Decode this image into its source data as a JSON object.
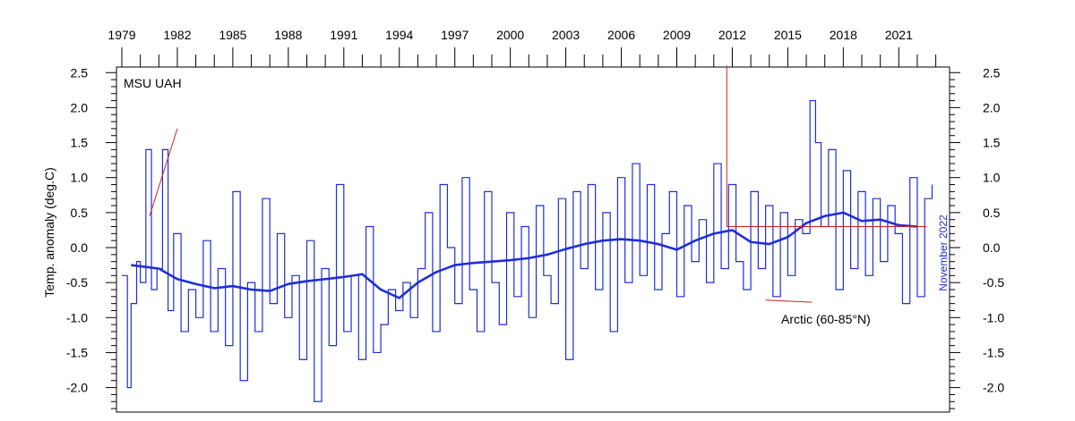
{
  "chart_data": {
    "type": "line",
    "title": "",
    "panel_label": "MSU UAH",
    "ylabel": "Temp. anomaly (deg.C)",
    "date_stamp": "November 2022",
    "annotation": "Arctic (60-85°N)",
    "x_ticks": [
      "1979",
      "1982",
      "1985",
      "1988",
      "1991",
      "1994",
      "1997",
      "2000",
      "2003",
      "2006",
      "2009",
      "2012",
      "2015",
      "2018",
      "2021"
    ],
    "y_ticks": [
      "2.5",
      "2.0",
      "1.5",
      "1.0",
      "0.5",
      "0.0",
      "-0.5",
      "-1.0",
      "-1.5",
      "-2.0"
    ],
    "xlim": [
      1979,
      2023
    ],
    "ylim": [
      -2.3,
      2.6
    ],
    "grid": false,
    "series": [
      {
        "role": "monthly",
        "color": "#1f2fd6",
        "x": [
          1979.0,
          1979.3,
          1979.5,
          1979.8,
          1980.0,
          1980.3,
          1980.6,
          1980.9,
          1981.2,
          1981.5,
          1981.8,
          1982.2,
          1982.6,
          1983.0,
          1983.4,
          1983.8,
          1984.2,
          1984.6,
          1985.0,
          1985.4,
          1985.8,
          1986.2,
          1986.6,
          1987.0,
          1987.4,
          1987.8,
          1988.2,
          1988.6,
          1989.0,
          1989.4,
          1989.8,
          1990.2,
          1990.6,
          1991.0,
          1991.4,
          1991.8,
          1992.2,
          1992.6,
          1993.0,
          1993.4,
          1993.8,
          1994.2,
          1994.6,
          1995.0,
          1995.4,
          1995.8,
          1996.2,
          1996.6,
          1997.0,
          1997.4,
          1997.8,
          1998.2,
          1998.6,
          1999.0,
          1999.4,
          1999.8,
          2000.2,
          2000.6,
          2001.0,
          2001.4,
          2001.8,
          2002.2,
          2002.6,
          2003.0,
          2003.4,
          2003.8,
          2004.2,
          2004.6,
          2005.0,
          2005.4,
          2005.8,
          2006.2,
          2006.6,
          2007.0,
          2007.4,
          2007.8,
          2008.2,
          2008.6,
          2009.0,
          2009.4,
          2009.8,
          2010.2,
          2010.6,
          2011.0,
          2011.4,
          2011.8,
          2012.2,
          2012.6,
          2013.0,
          2013.4,
          2013.8,
          2014.2,
          2014.6,
          2015.0,
          2015.4,
          2015.8,
          2016.2,
          2016.5,
          2016.8,
          2017.2,
          2017.6,
          2018.0,
          2018.4,
          2018.8,
          2019.2,
          2019.6,
          2020.0,
          2020.4,
          2020.8,
          2021.2,
          2021.6,
          2022.0,
          2022.4,
          2022.8
        ],
        "values": [
          -0.4,
          -2.0,
          -0.8,
          -0.2,
          -0.5,
          1.4,
          -0.6,
          -0.3,
          1.4,
          -0.9,
          0.2,
          -1.2,
          -0.6,
          -1.0,
          0.1,
          -1.2,
          -0.3,
          -1.4,
          0.8,
          -1.9,
          -0.5,
          -1.2,
          0.7,
          -0.8,
          0.2,
          -1.0,
          -0.4,
          -1.6,
          0.1,
          -2.2,
          -0.3,
          -1.4,
          0.9,
          -1.2,
          -0.4,
          -1.6,
          0.3,
          -1.5,
          -1.1,
          -0.6,
          -0.9,
          -0.5,
          -1.0,
          -0.3,
          0.5,
          -1.2,
          0.9,
          0.0,
          -0.8,
          1.0,
          -0.6,
          -1.2,
          0.8,
          -0.5,
          -1.1,
          0.5,
          -0.7,
          0.3,
          -1.0,
          0.6,
          -0.4,
          -0.8,
          0.7,
          -1.6,
          0.8,
          -0.3,
          0.9,
          -0.6,
          0.5,
          -1.2,
          1.0,
          -0.5,
          1.2,
          -0.4,
          0.9,
          -0.6,
          0.2,
          0.8,
          -0.7,
          0.6,
          -0.2,
          0.4,
          -0.5,
          1.2,
          -0.3,
          0.9,
          -0.2,
          -0.6,
          0.8,
          -0.3,
          0.6,
          -0.7,
          0.5,
          -0.4,
          0.4,
          0.2,
          2.1,
          1.5,
          0.3,
          1.4,
          -0.6,
          1.1,
          -0.3,
          0.8,
          -0.4,
          0.7,
          -0.2,
          0.6,
          0.2,
          -0.8,
          1.0,
          -0.7,
          0.7,
          0.9
        ]
      },
      {
        "role": "running-mean",
        "color": "#1f2fd6",
        "x": [
          1979.5,
          1981,
          1982,
          1983,
          1984,
          1985,
          1986,
          1987,
          1988,
          1989,
          1990,
          1991,
          1992,
          1993,
          1994,
          1995,
          1996,
          1997,
          1998,
          1999,
          2000,
          2001,
          2002,
          2003,
          2004,
          2005,
          2006,
          2007,
          2008,
          2009,
          2010,
          2011,
          2012,
          2013,
          2014,
          2015,
          2016,
          2017,
          2018,
          2019,
          2020,
          2021,
          2022
        ],
        "values": [
          -0.25,
          -0.3,
          -0.45,
          -0.52,
          -0.58,
          -0.55,
          -0.6,
          -0.62,
          -0.52,
          -0.48,
          -0.45,
          -0.42,
          -0.38,
          -0.6,
          -0.72,
          -0.5,
          -0.35,
          -0.25,
          -0.22,
          -0.2,
          -0.18,
          -0.15,
          -0.1,
          -0.02,
          0.05,
          0.1,
          0.12,
          0.1,
          0.05,
          -0.03,
          0.1,
          0.2,
          0.25,
          0.08,
          0.05,
          0.15,
          0.35,
          0.45,
          0.5,
          0.38,
          0.4,
          0.32,
          0.3
        ]
      }
    ],
    "overlays": {
      "color": "#d02020",
      "segments": [
        {
          "x": [
            1980.5,
            1982.0
          ],
          "values": [
            0.45,
            1.7
          ]
        },
        {
          "x": [
            2011.7,
            2011.7
          ],
          "values": [
            2.6,
            0.3
          ]
        },
        {
          "x": [
            2011.7,
            2022.5
          ],
          "values": [
            0.3,
            0.3
          ]
        },
        {
          "x": [
            2013.8,
            2016.3
          ],
          "values": [
            -0.75,
            -0.78
          ]
        }
      ]
    }
  }
}
